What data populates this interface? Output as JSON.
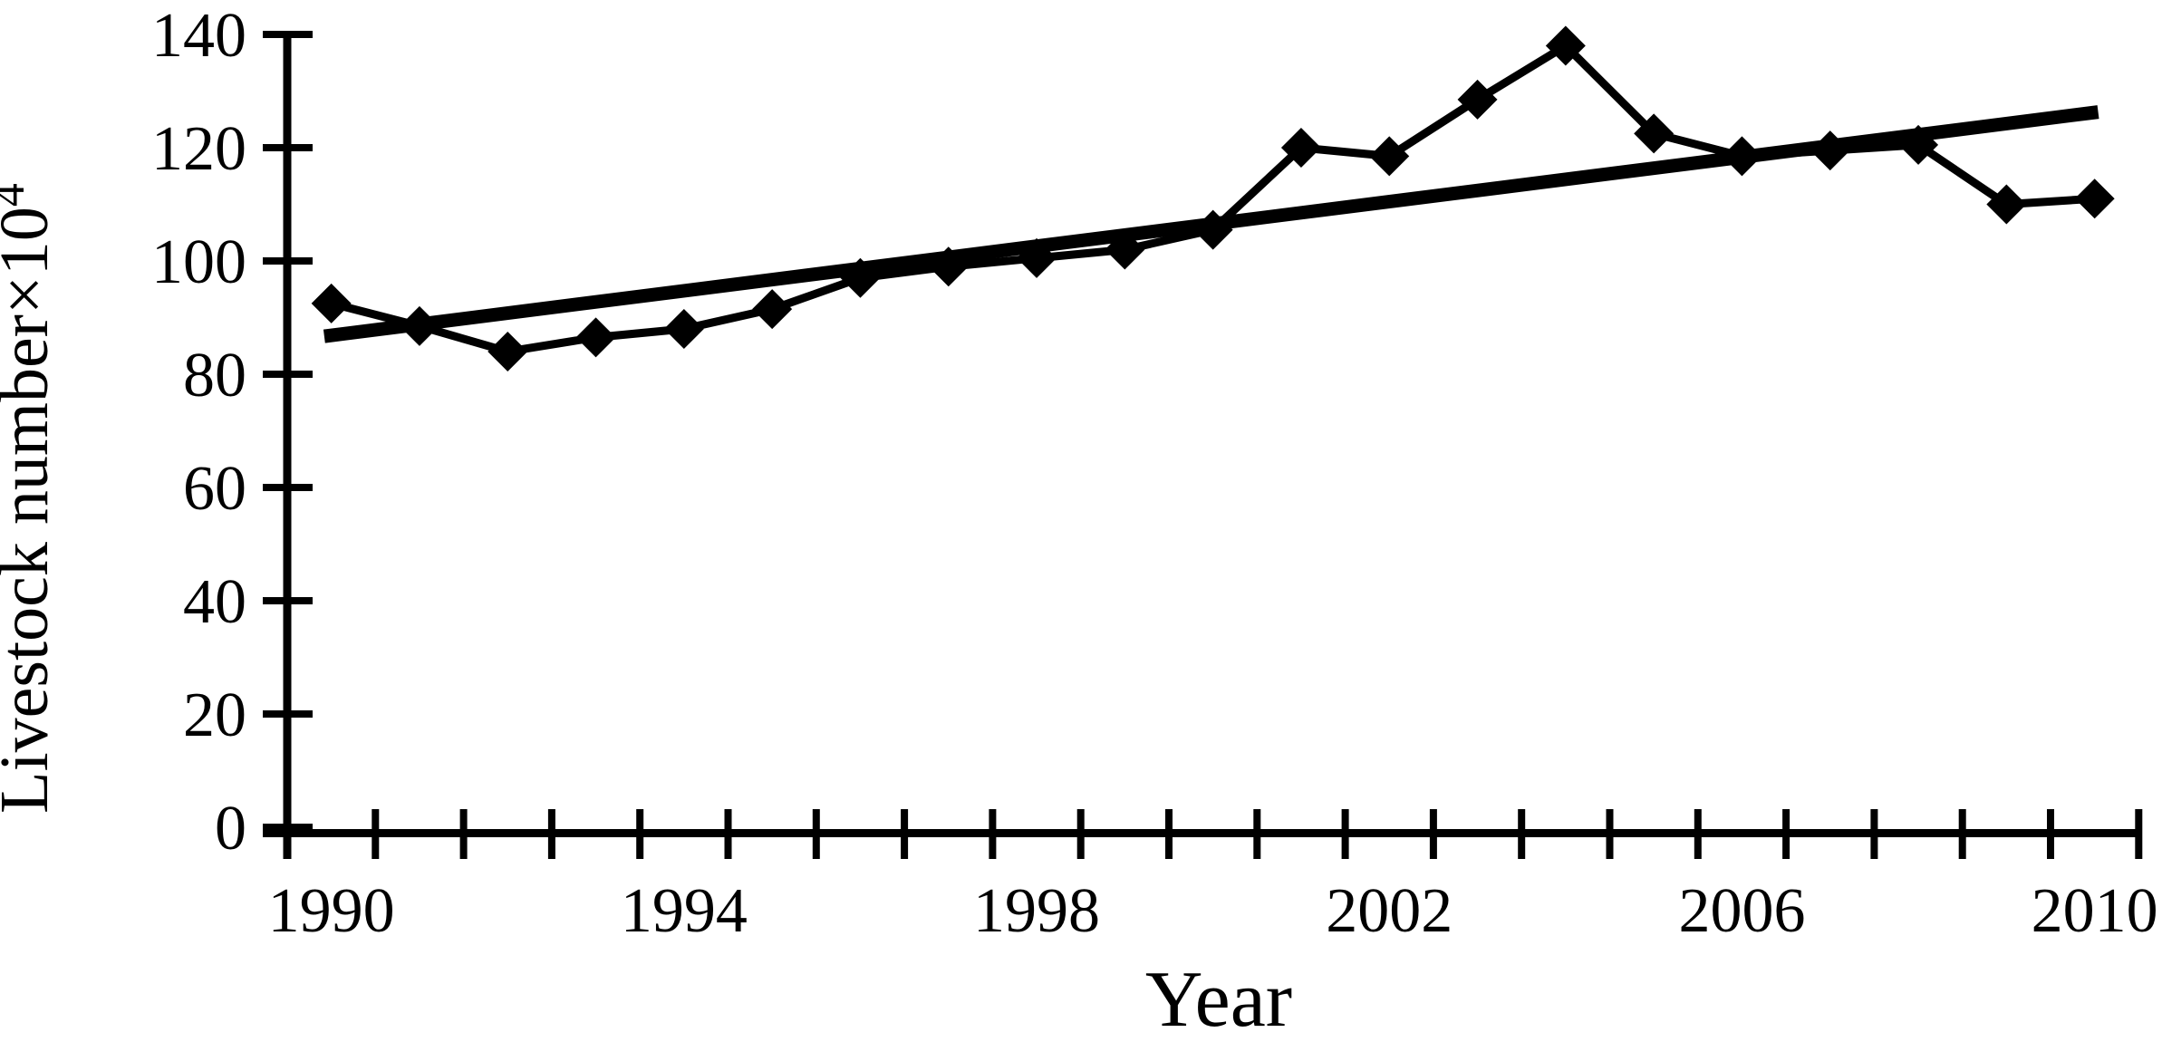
{
  "chart_data": {
    "type": "line",
    "title": "",
    "xlabel": "Year",
    "ylabel_main": "Livestock number×10",
    "ylabel_exponent": "4",
    "x": [
      1990,
      1991,
      1992,
      1993,
      1994,
      1995,
      1996,
      1997,
      1998,
      1999,
      2000,
      2001,
      2002,
      2003,
      2004,
      2005,
      2006,
      2007,
      2008,
      2009,
      2010
    ],
    "series": [
      {
        "name": "Livestock number",
        "marker": "diamond",
        "values": [
          92.5,
          88.5,
          84,
          86.5,
          88,
          91.5,
          97,
          99,
          100.5,
          102,
          105.5,
          120,
          118.5,
          128.5,
          138,
          122.5,
          118.5,
          119.5,
          120.5,
          110,
          111
        ]
      },
      {
        "name": "Linear trend",
        "style": "thick-straight-line",
        "x1": 1989.92,
        "y1": 86.7,
        "x2": 2010.04,
        "y2": 126.3
      }
    ],
    "y_ticks": [
      0,
      20,
      40,
      60,
      80,
      100,
      120,
      140
    ],
    "x_tick_labels": [
      1990,
      1994,
      1998,
      2002,
      2006,
      2010
    ],
    "ylim": [
      0,
      140
    ],
    "xlim": [
      1989.5,
      2010.5
    ],
    "grid": false,
    "legend": "none",
    "ink_color": "#000000",
    "background": "#ffffff"
  }
}
